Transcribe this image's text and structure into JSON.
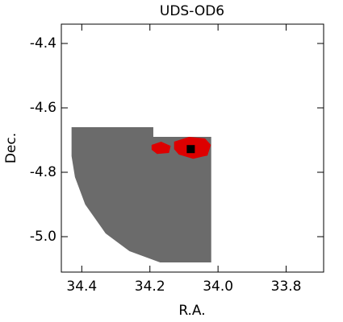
{
  "chart_data": {
    "type": "skymap",
    "title": "UDS-OD6",
    "x_label": "R.A.",
    "y_label": "Dec.",
    "xlim": [
      34.46,
      33.69
    ],
    "ylim": [
      -5.11,
      -4.34
    ],
    "xticks": [
      34.4,
      34.2,
      {
        "value": 34,
        "label": "34.0"
      },
      33.8
    ],
    "yticks": [
      -4.4,
      -4.6,
      -4.8,
      {
        "value": -5,
        "label": "-5.0"
      }
    ],
    "series": [
      {
        "color": "#6b6b6b",
        "x": [
          34.43,
          34.19,
          34.19,
          34.02,
          34.02,
          34.17,
          34.26,
          34.33,
          34.39,
          34.42,
          34.43
        ],
        "y": [
          -4.66,
          -4.66,
          -4.69,
          -4.69,
          -5.08,
          -5.08,
          -5.045,
          -4.99,
          -4.9,
          -4.815,
          -4.75
        ]
      },
      {
        "color": "#dd0000",
        "x": [
          34.195,
          34.167,
          34.139,
          34.144,
          34.179,
          34.195
        ],
        "y": [
          -4.715,
          -4.705,
          -4.718,
          -4.74,
          -4.743,
          -4.73
        ]
      },
      {
        "color": "#dd0000",
        "x": [
          34.129,
          34.085,
          34.038,
          34.021,
          34.031,
          34.073,
          34.115,
          34.129
        ],
        "y": [
          -4.705,
          -4.69,
          -4.695,
          -4.715,
          -4.748,
          -4.758,
          -4.745,
          -4.728
        ]
      }
    ],
    "points": {
      "color": "#000000",
      "x": [
        34.08
      ],
      "y": [
        -4.728
      ]
    }
  }
}
